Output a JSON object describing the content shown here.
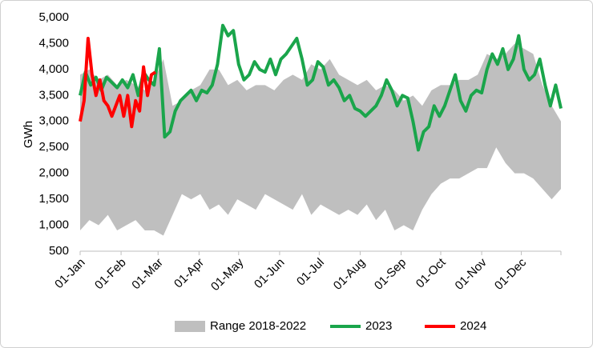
{
  "chart_data": {
    "type": "line",
    "y_label": "GWh",
    "xlim": [
      0,
      364
    ],
    "xticks": [
      {
        "value": 0,
        "label": "01-Jan"
      },
      {
        "value": 31,
        "label": "01-Feb"
      },
      {
        "value": 59,
        "label": "01-Mar"
      },
      {
        "value": 90,
        "label": "01-Apr"
      },
      {
        "value": 120,
        "label": "01-May"
      },
      {
        "value": 151,
        "label": "01-Jun"
      },
      {
        "value": 181,
        "label": "01-Jul"
      },
      {
        "value": 212,
        "label": "01-Aug"
      },
      {
        "value": 243,
        "label": "01-Sep"
      },
      {
        "value": 273,
        "label": "01-Oct"
      },
      {
        "value": 304,
        "label": "01-Nov"
      },
      {
        "value": 334,
        "label": "01-Dec"
      }
    ],
    "ylim": [
      500,
      5000
    ],
    "yticks": [
      500,
      {
        "value": 1000,
        "label": "1,000"
      },
      {
        "value": 1500,
        "label": "1,500"
      },
      {
        "value": 2000,
        "label": "2,000"
      },
      {
        "value": 2500,
        "label": "2,500"
      },
      {
        "value": 3000,
        "label": "3,000"
      },
      {
        "value": 3500,
        "label": "3,500"
      },
      {
        "value": 4000,
        "label": "4,000"
      },
      {
        "value": 4500,
        "label": "4,500"
      },
      {
        "value": 5000,
        "label": "5,000"
      }
    ],
    "grid": false,
    "legend": "bottom",
    "series": [
      {
        "name": "Range 2018-2022",
        "kind": "band",
        "color": "#bfbfbf",
        "x": [
          0,
          7,
          14,
          21,
          28,
          35,
          42,
          49,
          56,
          63,
          70,
          77,
          84,
          91,
          98,
          105,
          112,
          119,
          126,
          133,
          140,
          147,
          154,
          161,
          168,
          175,
          182,
          189,
          196,
          203,
          210,
          217,
          224,
          231,
          238,
          245,
          252,
          259,
          266,
          273,
          280,
          287,
          294,
          301,
          308,
          315,
          322,
          329,
          336,
          343,
          350,
          357,
          364
        ],
        "high": [
          3900,
          4000,
          3800,
          3900,
          3700,
          3800,
          3700,
          3600,
          3800,
          4200,
          3300,
          3400,
          3600,
          3700,
          4000,
          4000,
          3700,
          3800,
          3600,
          3700,
          3700,
          3600,
          3800,
          3900,
          3800,
          4100,
          4000,
          4200,
          3900,
          3800,
          3700,
          3800,
          3600,
          3700,
          3600,
          3400,
          3500,
          3300,
          3600,
          3700,
          3700,
          3800,
          3800,
          3900,
          4300,
          4200,
          4300,
          4500,
          4400,
          4300,
          3700,
          3300,
          3000
        ],
        "low": [
          900,
          1100,
          1000,
          1200,
          900,
          1000,
          1100,
          900,
          900,
          800,
          1200,
          1600,
          1500,
          1600,
          1300,
          1400,
          1200,
          1500,
          1400,
          1300,
          1600,
          1500,
          1400,
          1300,
          1600,
          1200,
          1400,
          1300,
          1200,
          1300,
          1200,
          1400,
          1100,
          1300,
          900,
          1000,
          900,
          1300,
          1600,
          1800,
          1900,
          1900,
          2000,
          2100,
          2100,
          2500,
          2200,
          2000,
          2000,
          1900,
          1700,
          1500,
          1700
        ]
      },
      {
        "name": "2023",
        "color": "#1aa54b",
        "x": [
          0,
          4,
          8,
          12,
          16,
          20,
          24,
          28,
          32,
          36,
          40,
          44,
          48,
          52,
          56,
          60,
          64,
          68,
          72,
          76,
          80,
          84,
          88,
          92,
          96,
          100,
          104,
          108,
          112,
          116,
          120,
          124,
          128,
          132,
          136,
          140,
          144,
          148,
          152,
          156,
          160,
          164,
          168,
          172,
          176,
          180,
          184,
          188,
          192,
          196,
          200,
          204,
          208,
          212,
          216,
          220,
          224,
          228,
          232,
          236,
          240,
          244,
          248,
          252,
          256,
          260,
          264,
          268,
          272,
          276,
          280,
          284,
          288,
          292,
          296,
          300,
          304,
          308,
          312,
          316,
          320,
          324,
          328,
          332,
          336,
          340,
          344,
          348,
          352,
          356,
          360,
          364
        ],
        "values": [
          3500,
          3950,
          3700,
          3850,
          3600,
          3850,
          3750,
          3650,
          3800,
          3650,
          3900,
          3500,
          3950,
          3800,
          3700,
          4400,
          2700,
          2800,
          3200,
          3400,
          3500,
          3600,
          3400,
          3600,
          3550,
          3700,
          4100,
          4850,
          4650,
          4750,
          4100,
          3800,
          3900,
          4150,
          4000,
          3950,
          4200,
          3900,
          4200,
          4300,
          4450,
          4600,
          4200,
          3700,
          3800,
          4150,
          4050,
          3700,
          3800,
          3650,
          3400,
          3500,
          3250,
          3200,
          3100,
          3200,
          3300,
          3500,
          3800,
          3600,
          3300,
          3500,
          3450,
          3000,
          2450,
          2800,
          2900,
          3300,
          3100,
          3300,
          3600,
          3900,
          3400,
          3200,
          3500,
          3600,
          3550,
          4000,
          4300,
          4100,
          4400,
          4000,
          4200,
          4650,
          4000,
          3800,
          3900,
          4200,
          3700,
          3300,
          3700,
          3250
        ]
      },
      {
        "name": "2024",
        "color": "#ff0000",
        "x": [
          0,
          3,
          6,
          9,
          12,
          15,
          18,
          21,
          24,
          27,
          30,
          33,
          36,
          39,
          42,
          45,
          48,
          51,
          54,
          57
        ],
        "values": [
          3000,
          3400,
          4600,
          3900,
          3500,
          3800,
          3400,
          3300,
          3100,
          3300,
          3500,
          3100,
          3500,
          2900,
          3400,
          3200,
          4050,
          3500,
          3900,
          3950
        ]
      }
    ]
  }
}
